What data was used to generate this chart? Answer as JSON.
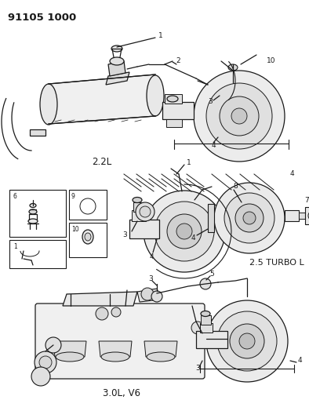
{
  "title_code": "91105 1000",
  "background_color": "#ffffff",
  "labels": {
    "top_section": "2.2L",
    "middle_section": "2.5 TURBO L",
    "bottom_section": "3.0L, V6"
  },
  "figsize": [
    3.94,
    5.33
  ],
  "dpi": 100
}
